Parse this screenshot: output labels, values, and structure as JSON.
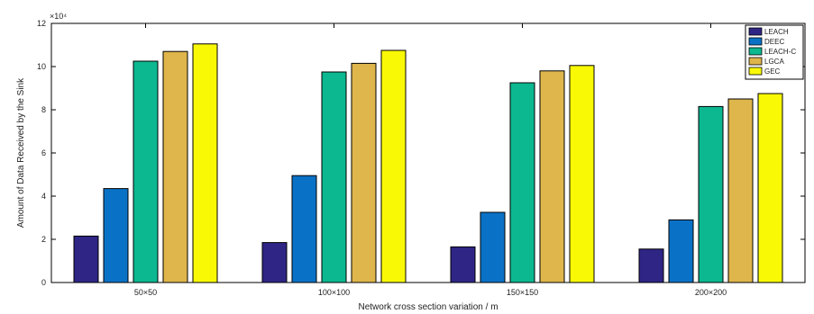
{
  "chart_data": {
    "type": "bar",
    "title": "",
    "xlabel": "Network cross section variation / m",
    "ylabel": "Amount of Data Received by the Sink",
    "y_multiplier_label": "×10⁴",
    "categories": [
      "50×50",
      "100×100",
      "150×150",
      "200×200"
    ],
    "ylim": [
      0,
      12
    ],
    "yticks": [
      0,
      2,
      4,
      6,
      8,
      10,
      12
    ],
    "grid": false,
    "legend_position": "top-right",
    "series": [
      {
        "name": "LEACH",
        "color": "#2e2585",
        "values": [
          2.15,
          1.85,
          1.65,
          1.55
        ]
      },
      {
        "name": "DEEC",
        "color": "#0a72c6",
        "values": [
          4.35,
          4.95,
          3.25,
          2.9
        ]
      },
      {
        "name": "LEACH-C",
        "color": "#0cb890",
        "values": [
          10.25,
          9.75,
          9.25,
          8.15
        ]
      },
      {
        "name": "LGCA",
        "color": "#dfb64c",
        "values": [
          10.7,
          10.15,
          9.8,
          8.5
        ]
      },
      {
        "name": "GEC",
        "color": "#f9f906",
        "values": [
          11.05,
          10.75,
          10.05,
          8.75
        ]
      }
    ]
  }
}
